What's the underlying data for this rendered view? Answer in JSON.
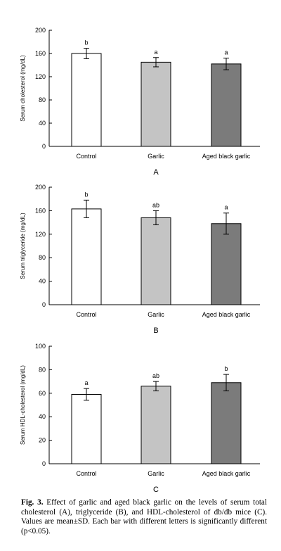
{
  "chart_data": [
    {
      "type": "bar",
      "panel_label": "A",
      "ylabel": "Serum cholesterol (mg/dL)",
      "ylim": [
        0,
        200
      ],
      "yticks": [
        0,
        40,
        80,
        120,
        160,
        200
      ],
      "categories": [
        "Control",
        "Garlic",
        "Aged black garlic"
      ],
      "values": [
        160,
        145,
        142
      ],
      "errors": [
        9,
        8,
        10
      ],
      "significance": [
        "b",
        "a",
        "a"
      ],
      "colors": [
        "#ffffff",
        "#c4c4c4",
        "#7b7b7b"
      ]
    },
    {
      "type": "bar",
      "panel_label": "B",
      "ylabel": "Serum triglyceride (mg/dL)",
      "ylim": [
        0,
        200
      ],
      "yticks": [
        0,
        40,
        80,
        120,
        160,
        200
      ],
      "categories": [
        "Control",
        "Garlic",
        "Aged black garlic"
      ],
      "values": [
        163,
        148,
        138
      ],
      "errors": [
        15,
        12,
        18
      ],
      "significance": [
        "b",
        "ab",
        "a"
      ],
      "colors": [
        "#ffffff",
        "#c4c4c4",
        "#7b7b7b"
      ]
    },
    {
      "type": "bar",
      "panel_label": "C",
      "ylabel": "Serum HDL-cholesterol (mg/dL)",
      "ylim": [
        0,
        100
      ],
      "yticks": [
        0,
        20,
        40,
        60,
        80,
        100
      ],
      "categories": [
        "Control",
        "Garlic",
        "Aged black garlic"
      ],
      "values": [
        59,
        66,
        69
      ],
      "errors": [
        5,
        4,
        7
      ],
      "significance": [
        "a",
        "ab",
        "b"
      ],
      "colors": [
        "#ffffff",
        "#c4c4c4",
        "#7b7b7b"
      ]
    }
  ],
  "caption": {
    "figure_number": "Fig. 3.",
    "text": "Effect of garlic and aged black garlic on the levels of serum total cholesterol (A), triglyceride (B), and HDL-cholesterol of db/db mice (C). Values are mean±SD. Each bar with different letters is significantly different (p<0.05)."
  }
}
